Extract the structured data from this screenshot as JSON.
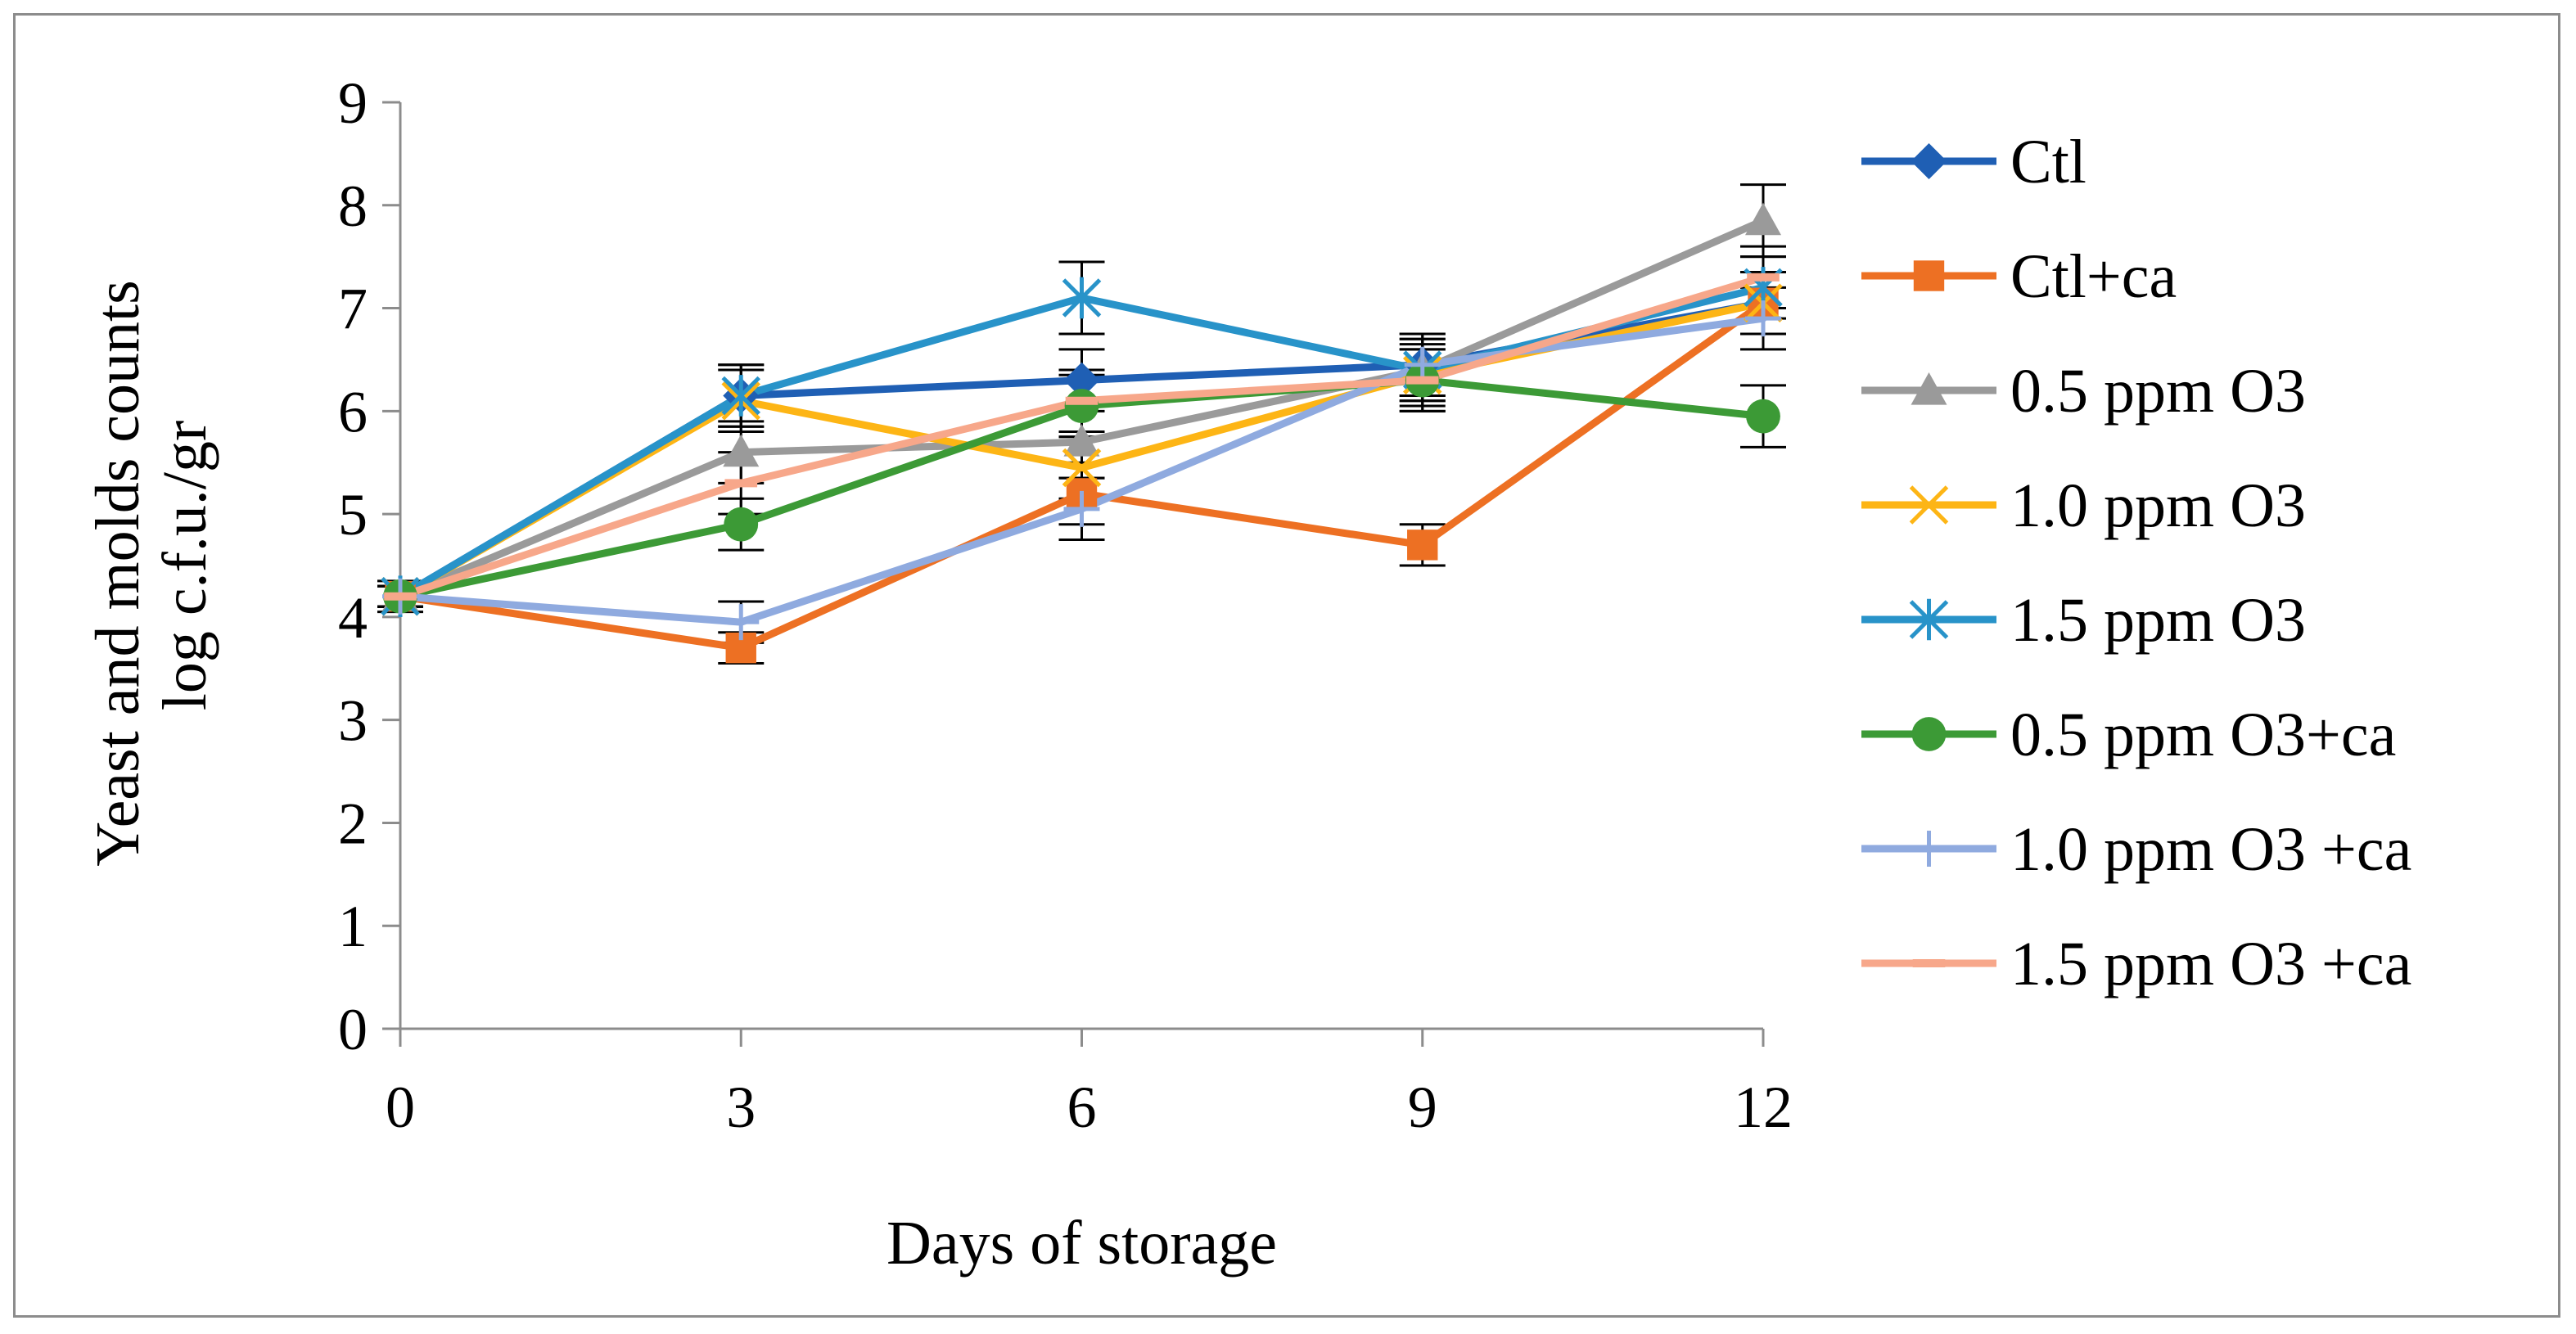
{
  "chart_data": {
    "type": "line",
    "title": "",
    "xlabel": "Days of storage",
    "ylabel": [
      "Yeast and molds counts",
      "log c.f.u./gr"
    ],
    "x": [
      0,
      3,
      6,
      9,
      12
    ],
    "x_tick_labels": [
      "0",
      "3",
      "6",
      "9",
      "12"
    ],
    "xlim": [
      0,
      12
    ],
    "ylim": [
      0,
      9
    ],
    "y_ticks": [
      0,
      1,
      2,
      3,
      4,
      5,
      6,
      7,
      8,
      9
    ],
    "y_tick_labels": [
      "0",
      "1",
      "2",
      "3",
      "4",
      "5",
      "6",
      "7",
      "8",
      "9"
    ],
    "grid": false,
    "legend_position": "right",
    "series": [
      {
        "name": "Ctl",
        "color": "#1f5fb4",
        "marker": "diamond",
        "values": [
          4.2,
          6.15,
          6.3,
          6.45,
          7.05
        ],
        "errors": [
          0.15,
          0.3,
          0.3,
          0.3,
          0.3
        ]
      },
      {
        "name": "Ctl+ca",
        "color": "#ed7023",
        "marker": "square",
        "values": [
          4.2,
          3.7,
          5.2,
          4.7,
          7.05
        ],
        "errors": [
          0.1,
          0.15,
          0.3,
          0.2,
          0.3
        ]
      },
      {
        "name": "0.5 ppm O3",
        "color": "#9a9a9a",
        "marker": "triangle",
        "values": [
          4.2,
          5.6,
          5.7,
          6.4,
          7.85
        ],
        "errors": [
          0.1,
          0.3,
          0.35,
          0.3,
          0.35
        ]
      },
      {
        "name": "1.0 ppm O3",
        "color": "#fdb515",
        "marker": "x",
        "values": [
          4.2,
          6.1,
          5.45,
          6.35,
          7.05
        ],
        "errors": [
          0.1,
          0.3,
          0.3,
          0.3,
          0.3
        ]
      },
      {
        "name": "1.5 ppm O3",
        "color": "#2893c9",
        "marker": "star",
        "values": [
          4.2,
          6.15,
          7.1,
          6.4,
          7.2
        ],
        "errors": [
          0.1,
          0.3,
          0.35,
          0.3,
          0.3
        ]
      },
      {
        "name": "0.5 ppm O3+ca",
        "color": "#3c9a36",
        "marker": "circle",
        "values": [
          4.2,
          4.9,
          6.05,
          6.3,
          5.95
        ],
        "errors": [
          0.1,
          0.25,
          0.3,
          0.3,
          0.3
        ]
      },
      {
        "name": "1.0 ppm O3 +ca",
        "color": "#8faadf",
        "marker": "plus",
        "values": [
          4.2,
          3.95,
          5.05,
          6.45,
          6.9
        ],
        "errors": [
          0.1,
          0.2,
          0.3,
          0.3,
          0.3
        ]
      },
      {
        "name": "1.5 ppm O3 +ca",
        "color": "#f7a78a",
        "marker": "dash",
        "values": [
          4.2,
          5.3,
          6.1,
          6.3,
          7.3
        ],
        "errors": [
          0.1,
          0.3,
          0.3,
          0.3,
          0.3
        ]
      }
    ]
  }
}
